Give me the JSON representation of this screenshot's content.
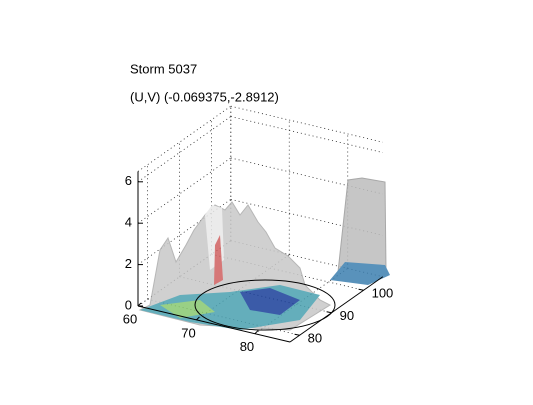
{
  "chart_data": {
    "type": "surface3d",
    "title": "Storm 5037",
    "subtitle": "(U,V) (-0.069375,-2.8912)",
    "xlim": [
      60,
      86
    ],
    "xticks": [
      60,
      70,
      80
    ],
    "ylim": [
      77,
      106
    ],
    "yticks": [
      80,
      90,
      100
    ],
    "zlim": [
      0,
      6.5
    ],
    "zticks": [
      0,
      2,
      4,
      6
    ],
    "grid": true
  }
}
